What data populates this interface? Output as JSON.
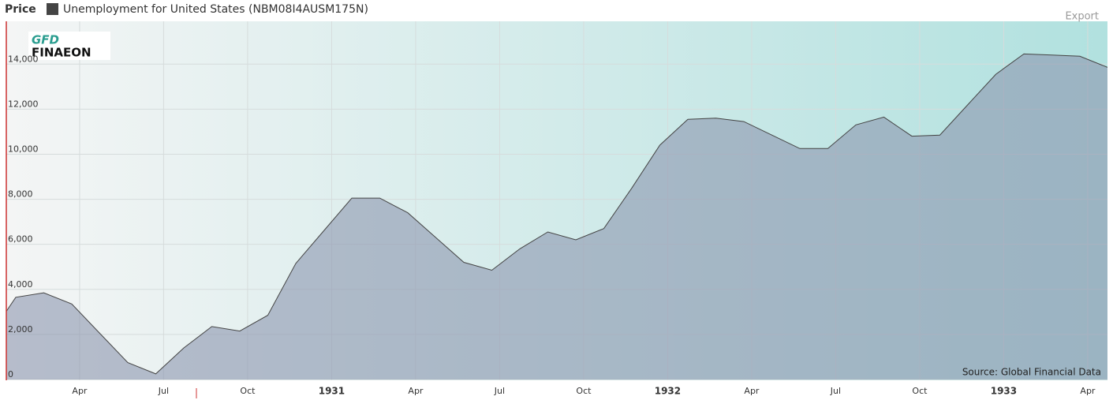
{
  "chart_data": {
    "type": "area",
    "header_label": "Price",
    "export_label": "Export",
    "source": "Source: Global Financial Data",
    "logo_top": "GFD",
    "logo_bottom": "FINAEON",
    "x": [
      "1929-12",
      "1930-01",
      "1930-02",
      "1930-03",
      "1930-04",
      "1930-05",
      "1930-06",
      "1930-07",
      "1930-08",
      "1930-09",
      "1930-10",
      "1930-11",
      "1930-12",
      "1931-01",
      "1931-02",
      "1931-03",
      "1931-04",
      "1931-05",
      "1931-06",
      "1931-07",
      "1931-08",
      "1931-09",
      "1931-10",
      "1931-11",
      "1931-12",
      "1932-01",
      "1932-02",
      "1932-03",
      "1932-04",
      "1932-05",
      "1932-06",
      "1932-07",
      "1932-08",
      "1932-09",
      "1932-10",
      "1932-11",
      "1932-12",
      "1933-01",
      "1933-02",
      "1933-03",
      "1933-04"
    ],
    "series": [
      {
        "name": "Unemployment for United States (NBM08I4AUSM175N)",
        "color": "#444444",
        "values": [
          1800,
          3650,
          3850,
          3350,
          2050,
          750,
          250,
          1400,
          2350,
          2150,
          2850,
          5150,
          6600,
          8050,
          8050,
          7400,
          6300,
          5200,
          4850,
          5800,
          6550,
          6200,
          6700,
          8500,
          10400,
          11550,
          11600,
          11450,
          10850,
          10250,
          10250,
          11300,
          11650,
          10800,
          10850,
          12200,
          13550,
          14450,
          14400,
          14350,
          13850
        ]
      }
    ],
    "ylim": [
      0,
      15900
    ],
    "yticks": [
      0,
      {
        "value": 2000,
        "label": "2,000"
      },
      {
        "value": 4000,
        "label": "4,000"
      },
      {
        "value": 6000,
        "label": "6,000"
      },
      {
        "value": 8000,
        "label": "8,000"
      },
      {
        "value": 10000,
        "label": "10,000"
      },
      {
        "value": 12000,
        "label": "12,000"
      },
      {
        "value": 14000,
        "label": "14,000"
      }
    ],
    "xticks": [
      {
        "value": "1930-04",
        "label": "Apr"
      },
      {
        "value": "1930-07",
        "label": "Jul"
      },
      {
        "value": "1930-10",
        "label": "Oct"
      },
      {
        "value": "1931-01",
        "label": "1931"
      },
      {
        "value": "1931-04",
        "label": "Apr"
      },
      {
        "value": "1931-07",
        "label": "Jul"
      },
      {
        "value": "1931-10",
        "label": "Oct"
      },
      {
        "value": "1932-01",
        "label": "1932"
      },
      {
        "value": "1932-04",
        "label": "Apr"
      },
      {
        "value": "1932-07",
        "label": "Jul"
      },
      {
        "value": "1932-10",
        "label": "Oct"
      },
      {
        "value": "1933-01",
        "label": "1933"
      },
      {
        "value": "1933-04",
        "label": "Apr"
      }
    ],
    "grid": true
  }
}
